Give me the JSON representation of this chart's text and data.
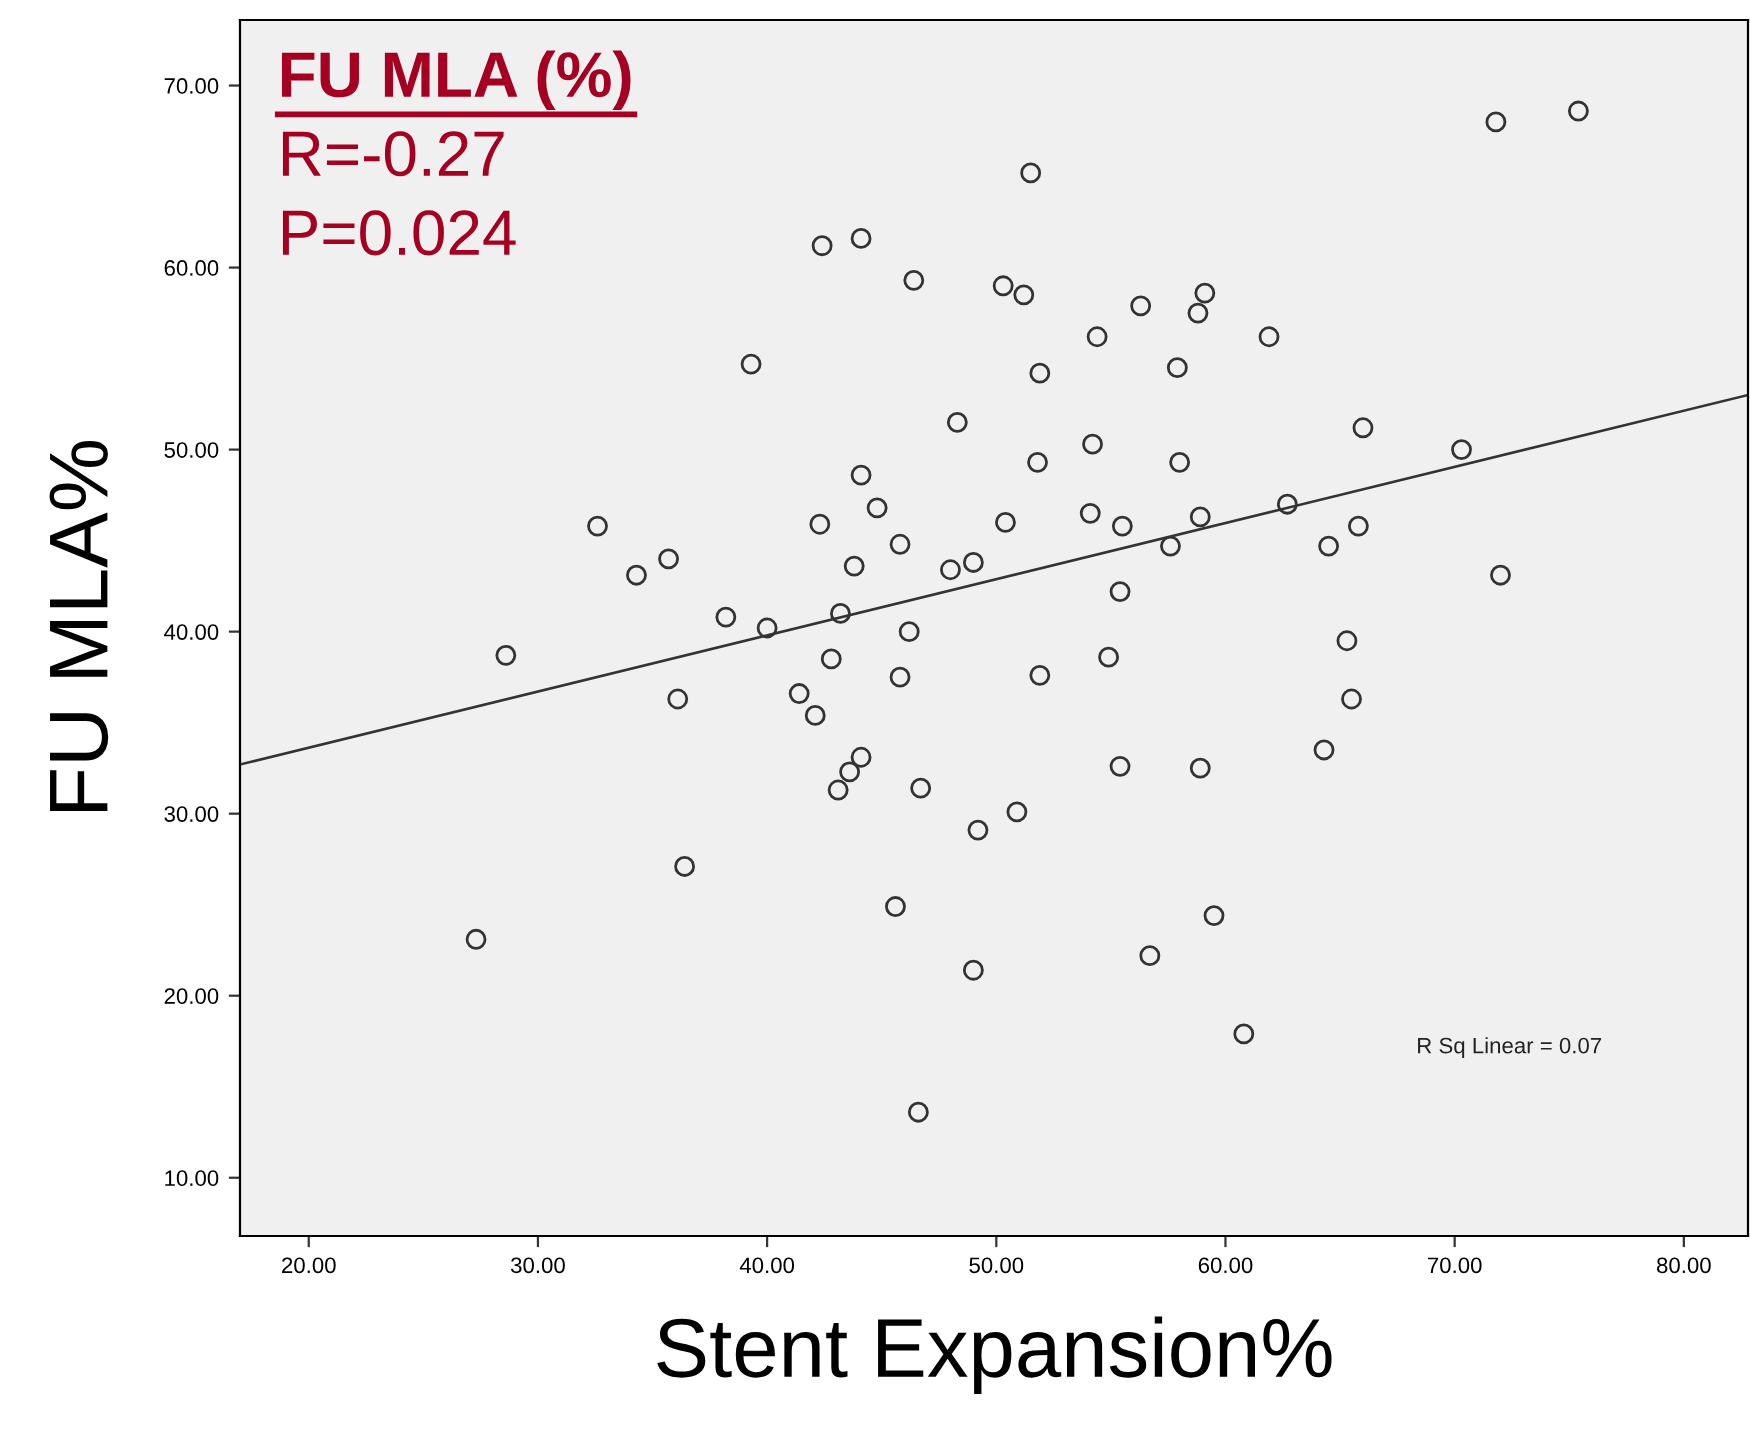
{
  "chart_data": {
    "type": "scatter",
    "xlabel": "Stent Expansion%",
    "ylabel": "FU MLA%",
    "grid": false,
    "xlim": [
      17,
      82.8
    ],
    "ylim": [
      6.8,
      73.6
    ],
    "xticks": [
      {
        "value": 20,
        "label": "20.00"
      },
      {
        "value": 30,
        "label": "30.00"
      },
      {
        "value": 40,
        "label": "40.00"
      },
      {
        "value": 50,
        "label": "50.00"
      },
      {
        "value": 60,
        "label": "60.00"
      },
      {
        "value": 70,
        "label": "70.00"
      },
      {
        "value": 80,
        "label": "80.00"
      }
    ],
    "yticks": [
      {
        "value": 10,
        "label": "10.00"
      },
      {
        "value": 20,
        "label": "20.00"
      },
      {
        "value": 30,
        "label": "30.00"
      },
      {
        "value": 40,
        "label": "40.00"
      },
      {
        "value": 50,
        "label": "50.00"
      },
      {
        "value": 60,
        "label": "60.00"
      },
      {
        "value": 70,
        "label": "70.00"
      }
    ],
    "annotations": [
      "FU MLA (%)",
      "R=-0.27",
      "P=0.024",
      "R Sq Linear = 0.07"
    ],
    "series": [
      {
        "type": "scatter",
        "marker": "circle",
        "color": "#333333",
        "x": [
          27.3,
          28.6,
          32.6,
          34.3,
          35.7,
          36.1,
          36.4,
          38.2,
          39.3,
          40.0,
          41.4,
          42.1,
          42.4,
          42.3,
          42.8,
          43.1,
          43.2,
          43.6,
          43.8,
          44.1,
          44.1,
          44.1,
          44.8,
          45.6,
          45.8,
          45.8,
          46.2,
          46.4,
          46.6,
          46.7,
          48.0,
          48.3,
          49.0,
          49.0,
          49.2,
          50.3,
          50.4,
          50.9,
          51.2,
          51.5,
          51.8,
          51.9,
          51.9,
          54.1,
          54.2,
          54.4,
          54.9,
          55.4,
          55.4,
          55.5,
          56.3,
          56.7,
          57.6,
          57.9,
          58.0,
          58.8,
          58.9,
          58.9,
          59.1,
          59.5,
          60.8,
          61.9,
          62.7,
          64.3,
          64.5,
          65.3,
          65.5,
          65.8,
          66.0,
          70.3,
          71.8,
          72.0,
          75.4
        ],
        "values": [
          23.1,
          38.7,
          45.8,
          43.1,
          44.0,
          36.3,
          27.1,
          40.8,
          54.7,
          40.2,
          36.6,
          35.4,
          61.2,
          45.9,
          38.5,
          31.3,
          41.0,
          32.3,
          43.6,
          33.1,
          61.6,
          48.6,
          46.8,
          24.9,
          44.8,
          37.5,
          40.0,
          59.3,
          13.6,
          31.4,
          43.4,
          51.5,
          43.8,
          21.4,
          29.1,
          59.0,
          46.0,
          30.1,
          58.5,
          65.2,
          49.3,
          54.2,
          37.6,
          46.5,
          50.3,
          56.2,
          38.6,
          42.2,
          32.6,
          45.8,
          57.9,
          22.2,
          44.7,
          54.5,
          49.3,
          57.5,
          46.3,
          32.5,
          58.6,
          24.4,
          17.9,
          56.2,
          47.0,
          33.5,
          44.7,
          39.5,
          36.3,
          45.8,
          51.2,
          50.0,
          68.0,
          43.1,
          68.6
        ]
      },
      {
        "type": "line",
        "color": "#333333",
        "x": [
          17,
          82.8
        ],
        "values": [
          32.7,
          53.0
        ]
      }
    ]
  }
}
